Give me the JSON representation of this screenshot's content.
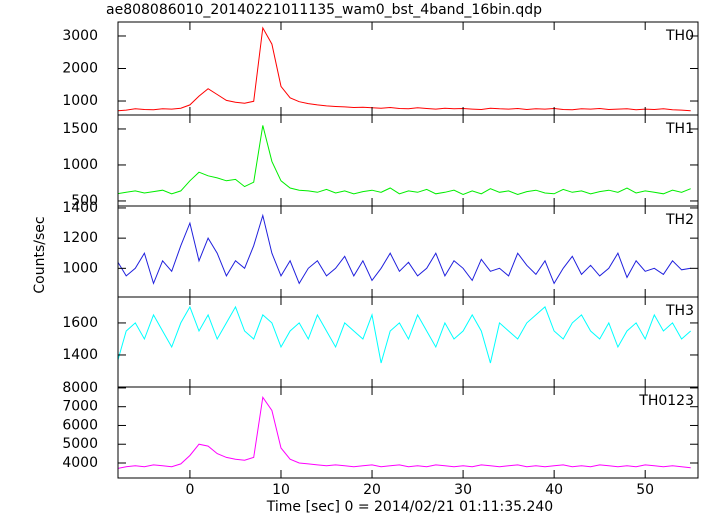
{
  "chart_data": {
    "type": "line",
    "title": "ae808086010_20140221011135_wam0_bst_4band_16bin.qdp",
    "xlabel": "Time [sec] 0 = 2014/02/21 01:11:35.240",
    "ylabel": "Counts/sec",
    "xlim": [
      -7.9,
      55.8
    ],
    "xticks": [
      0,
      10,
      20,
      30,
      40,
      50
    ],
    "x": [
      -8,
      -7,
      -6,
      -5,
      -4,
      -3,
      -2,
      -1,
      0,
      1,
      2,
      3,
      4,
      5,
      6,
      7,
      8,
      9,
      10,
      11,
      12,
      13,
      14,
      15,
      16,
      17,
      18,
      19,
      20,
      21,
      22,
      23,
      24,
      25,
      26,
      27,
      28,
      29,
      30,
      31,
      32,
      33,
      34,
      35,
      36,
      37,
      38,
      39,
      40,
      41,
      42,
      43,
      44,
      45,
      46,
      47,
      48,
      49,
      50,
      51,
      52,
      53,
      54,
      55
    ],
    "series": [
      {
        "name": "TH0",
        "color": "#ff0000",
        "ylim": [
          570,
          3430
        ],
        "yticks": [
          1000,
          2000,
          3000
        ],
        "values": [
          700,
          720,
          760,
          740,
          730,
          760,
          750,
          780,
          880,
          1150,
          1380,
          1200,
          1020,
          960,
          930,
          990,
          3250,
          2750,
          1450,
          1100,
          980,
          920,
          880,
          850,
          830,
          820,
          800,
          810,
          790,
          780,
          800,
          770,
          760,
          790,
          770,
          750,
          780,
          760,
          770,
          750,
          740,
          780,
          760,
          750,
          770,
          740,
          760,
          750,
          770,
          740,
          730,
          760,
          750,
          770,
          740,
          750,
          760,
          730,
          750,
          740,
          760,
          730,
          720,
          700
        ]
      },
      {
        "name": "TH1",
        "color": "#00ee00",
        "ylim": [
          430,
          1694
        ],
        "yticks": [
          500,
          1000,
          1500
        ],
        "values": [
          600,
          620,
          640,
          610,
          630,
          650,
          600,
          640,
          780,
          900,
          850,
          820,
          780,
          800,
          700,
          760,
          1550,
          1050,
          780,
          680,
          650,
          640,
          620,
          660,
          610,
          640,
          600,
          630,
          650,
          620,
          680,
          600,
          640,
          620,
          660,
          600,
          620,
          650,
          590,
          640,
          600,
          670,
          620,
          640,
          590,
          630,
          650,
          610,
          600,
          660,
          620,
          640,
          600,
          630,
          650,
          620,
          680,
          610,
          640,
          620,
          600,
          650,
          620,
          670
        ]
      },
      {
        "name": "TH2",
        "color": "#2020dd",
        "ylim": [
          810,
          1413
        ],
        "yticks": [
          1000,
          1200,
          1400
        ],
        "values": [
          1050,
          950,
          1000,
          1100,
          900,
          1050,
          980,
          1150,
          1300,
          1050,
          1200,
          1100,
          950,
          1050,
          1000,
          1150,
          1350,
          1100,
          950,
          1050,
          900,
          1000,
          1050,
          950,
          1000,
          1080,
          950,
          1050,
          920,
          1000,
          1100,
          980,
          1040,
          950,
          1000,
          1100,
          950,
          1050,
          1000,
          920,
          1060,
          980,
          1000,
          950,
          1100,
          1020,
          960,
          1050,
          900,
          1000,
          1080,
          960,
          1020,
          950,
          1000,
          1100,
          940,
          1050,
          980,
          1000,
          960,
          1050,
          990,
          1000
        ]
      },
      {
        "name": "TH3",
        "color": "#00ffff",
        "ylim": [
          1200,
          1762
        ],
        "yticks": [
          1400,
          1600
        ],
        "values": [
          1350,
          1550,
          1600,
          1500,
          1650,
          1550,
          1450,
          1600,
          1700,
          1550,
          1650,
          1500,
          1600,
          1700,
          1550,
          1500,
          1650,
          1600,
          1450,
          1550,
          1600,
          1500,
          1650,
          1550,
          1450,
          1600,
          1550,
          1500,
          1650,
          1350,
          1550,
          1600,
          1500,
          1650,
          1550,
          1450,
          1600,
          1500,
          1550,
          1650,
          1550,
          1350,
          1600,
          1550,
          1500,
          1600,
          1650,
          1700,
          1550,
          1500,
          1600,
          1650,
          1550,
          1500,
          1600,
          1450,
          1550,
          1600,
          1500,
          1650,
          1550,
          1600,
          1500,
          1550
        ]
      },
      {
        "name": "TH0123",
        "color": "#ff00ff",
        "ylim": [
          3200,
          8050
        ],
        "yticks": [
          4000,
          5000,
          6000,
          7000,
          8000
        ],
        "values": [
          3700,
          3800,
          3850,
          3800,
          3900,
          3850,
          3800,
          3950,
          4400,
          5000,
          4900,
          4500,
          4300,
          4200,
          4150,
          4300,
          7500,
          6800,
          4800,
          4200,
          4000,
          3950,
          3900,
          3850,
          3900,
          3850,
          3800,
          3850,
          3900,
          3800,
          3850,
          3900,
          3800,
          3850,
          3800,
          3900,
          3850,
          3800,
          3850,
          3800,
          3900,
          3850,
          3800,
          3850,
          3900,
          3800,
          3850,
          3800,
          3850,
          3900,
          3800,
          3850,
          3800,
          3900,
          3850,
          3800,
          3850,
          3800,
          3900,
          3850,
          3800,
          3850,
          3800,
          3750
        ]
      }
    ]
  }
}
